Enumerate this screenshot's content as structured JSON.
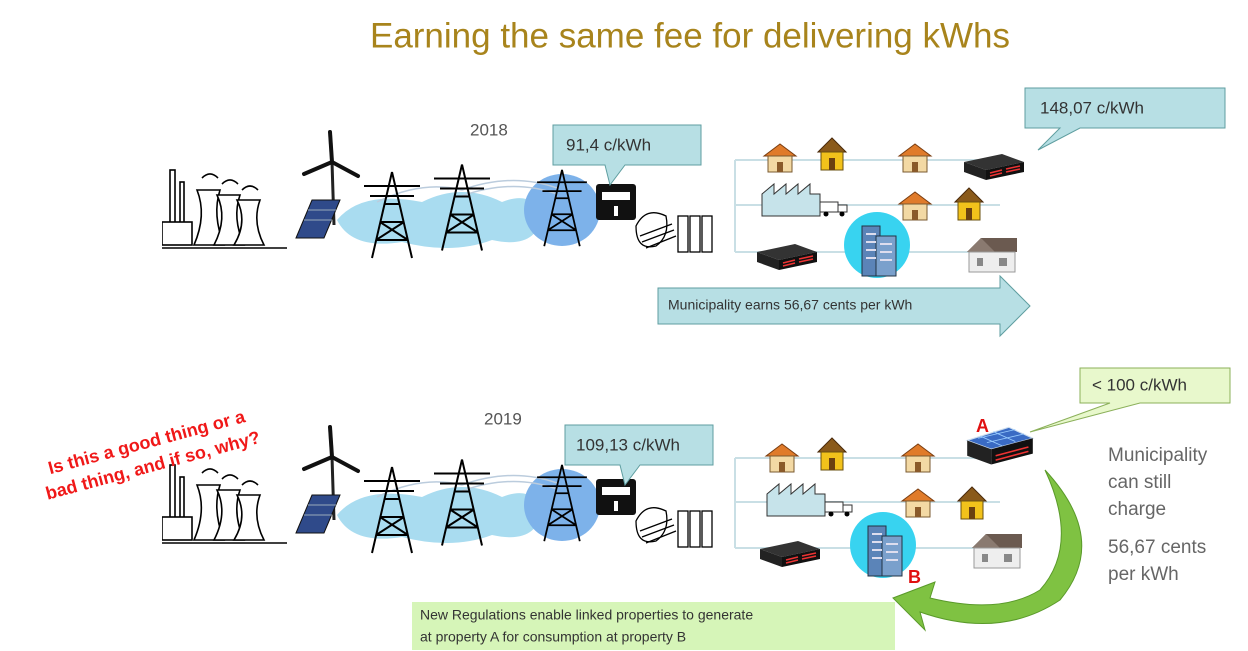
{
  "title": "Earning the same fee for delivering kWhs",
  "scenarios": [
    {
      "year": "2018",
      "wholesale_price": "91,4 c/kWh",
      "retail_price": "148,07 c/kWh",
      "margin": "Municipality earns  56,67 cents per  kWh"
    },
    {
      "year": "2019",
      "wholesale_price": "109,13 c/kWh",
      "generation_price": "< 100 c/kWh",
      "property_a": "A",
      "property_b": "B",
      "side_note": [
        "Municipality",
        "can still",
        "charge",
        "56,67 cents",
        "per kWh"
      ],
      "regulation_note": [
        "New Regulations enable linked properties to generate",
        "at property A for consumption at property B"
      ]
    }
  ],
  "question": [
    "Is this a good thing or a",
    "bad thing, and if so, why?"
  ]
}
